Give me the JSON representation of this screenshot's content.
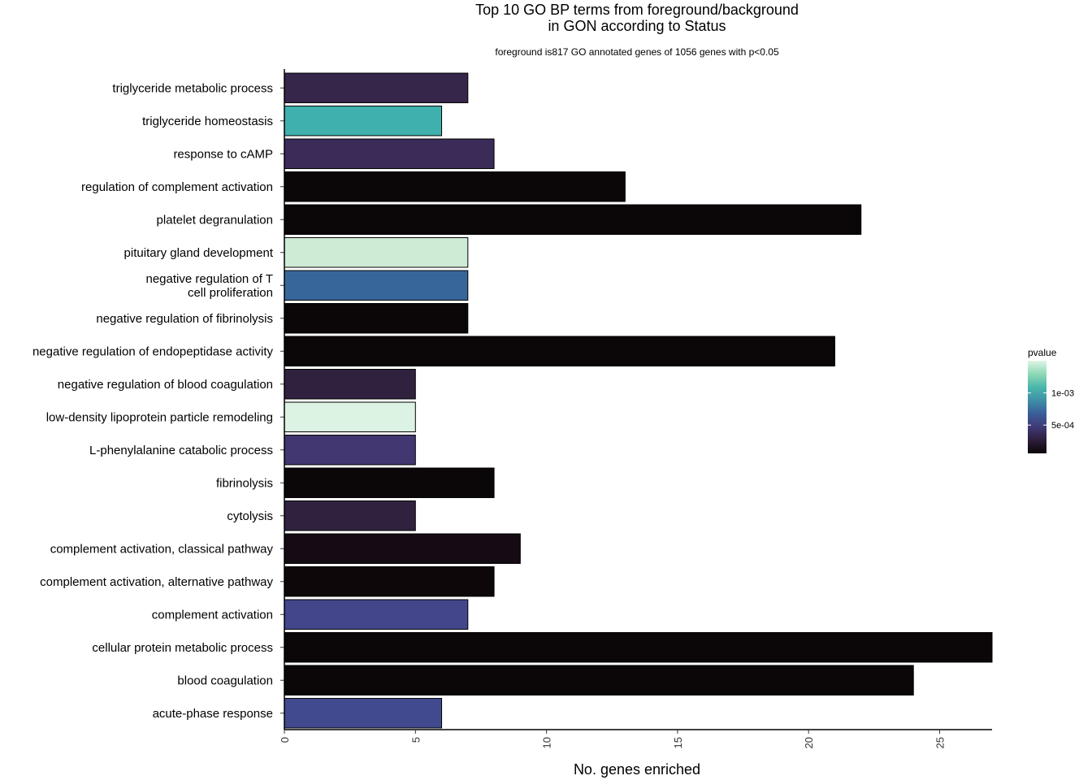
{
  "chart_data": {
    "type": "bar",
    "orientation": "horizontal",
    "title_lines": [
      "Top 10 GO BP terms from foreground/background",
      "in GON according to Status"
    ],
    "subtitle": "foreground is817 GO annotated genes of 1056 genes with p<0.05",
    "xlabel": "No. genes enriched",
    "ylabel": "",
    "xlim": [
      0,
      27
    ],
    "x_ticks": [
      0,
      5,
      10,
      15,
      20,
      25
    ],
    "x_tick_labels": [
      "0",
      "5",
      "10",
      "15",
      "20",
      "25"
    ],
    "grid": false,
    "categories": [
      {
        "label_lines": [
          "triglyceride metabolic process"
        ],
        "value": 7,
        "color": "#35264a"
      },
      {
        "label_lines": [
          "triglyceride homeostasis"
        ],
        "value": 6,
        "color": "#3fb0ad"
      },
      {
        "label_lines": [
          "response to cAMP"
        ],
        "value": 8,
        "color": "#3a2b59"
      },
      {
        "label_lines": [
          "regulation of complement activation"
        ],
        "value": 13,
        "color": "#0b0608"
      },
      {
        "label_lines": [
          "platelet degranulation"
        ],
        "value": 22,
        "color": "#0b0608"
      },
      {
        "label_lines": [
          "pituitary gland development"
        ],
        "value": 7,
        "color": "#cdebd5"
      },
      {
        "label_lines": [
          "negative regulation of T",
          "cell proliferation"
        ],
        "value": 7,
        "color": "#37679a"
      },
      {
        "label_lines": [
          "negative regulation of fibrinolysis"
        ],
        "value": 7,
        "color": "#0b0608"
      },
      {
        "label_lines": [
          "negative regulation of endopeptidase activity"
        ],
        "value": 21,
        "color": "#0b0608"
      },
      {
        "label_lines": [
          "negative regulation of blood coagulation"
        ],
        "value": 5,
        "color": "#30223f"
      },
      {
        "label_lines": [
          "low-density lipoprotein particle remodeling"
        ],
        "value": 5,
        "color": "#dcf3e3"
      },
      {
        "label_lines": [
          "L-phenylalanine catabolic process"
        ],
        "value": 5,
        "color": "#423770"
      },
      {
        "label_lines": [
          "fibrinolysis"
        ],
        "value": 8,
        "color": "#0b0608"
      },
      {
        "label_lines": [
          "cytolysis"
        ],
        "value": 5,
        "color": "#30223f"
      },
      {
        "label_lines": [
          "complement activation, classical pathway"
        ],
        "value": 9,
        "color": "#140b14"
      },
      {
        "label_lines": [
          "complement activation, alternative pathway"
        ],
        "value": 8,
        "color": "#0d0709"
      },
      {
        "label_lines": [
          "complement activation"
        ],
        "value": 7,
        "color": "#43468a"
      },
      {
        "label_lines": [
          "cellular protein metabolic process"
        ],
        "value": 27,
        "color": "#0b0608"
      },
      {
        "label_lines": [
          "blood coagulation"
        ],
        "value": 24,
        "color": "#0b0608"
      },
      {
        "label_lines": [
          "acute-phase response"
        ],
        "value": 6,
        "color": "#414a8e"
      }
    ],
    "legend": {
      "title": "pvalue",
      "position": "right",
      "labels": [
        "1e-03",
        "5e-04"
      ],
      "label_values": [
        0.001,
        0.0005
      ],
      "range": [
        6e-05,
        0.0015
      ],
      "gradient_colors": [
        "#0b0608",
        "#2e1e3b",
        "#403a75",
        "#3a5d9a",
        "#3e8fa6",
        "#4bb7ab",
        "#8fd8b5",
        "#def5e5"
      ]
    }
  }
}
